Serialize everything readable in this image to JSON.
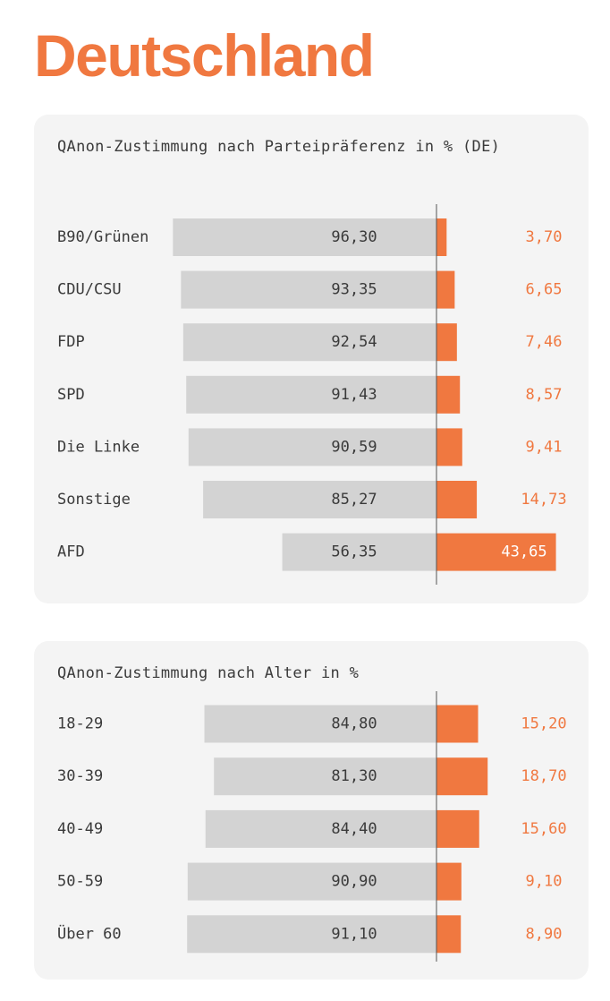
{
  "page": {
    "title": "Deutschland"
  },
  "colors": {
    "accent": "#f07840",
    "neutral_bar": "#d3d3d3",
    "card_bg": "#f4f4f4",
    "text": "#3a3a3a",
    "axis": "#555555"
  },
  "chart_data": [
    {
      "type": "bar",
      "orientation": "horizontal",
      "stacking": "diverging",
      "title": "QAnon-Zustimmung nach Parteipräferenz in % (DE)",
      "categories": [
        "B90/Grünen",
        "CDU/CSU",
        "FDP",
        "SPD",
        "Die Linke",
        "Sonstige",
        "AFD"
      ],
      "series": [
        {
          "values": [
            96.3,
            93.35,
            92.54,
            91.43,
            90.59,
            85.27,
            56.35
          ],
          "labels": [
            "96,30",
            "93,35",
            "92,54",
            "91,43",
            "90,59",
            "85,27",
            "56,35"
          ]
        },
        {
          "values": [
            3.7,
            6.65,
            7.46,
            8.57,
            9.41,
            14.73,
            43.65
          ],
          "labels": [
            "3,70",
            "6,65",
            "7,46",
            "8,57",
            "9,41",
            "14,73",
            "43,65"
          ]
        }
      ]
    },
    {
      "type": "bar",
      "orientation": "horizontal",
      "stacking": "diverging",
      "title": "QAnon-Zustimmung nach Alter in %",
      "categories": [
        "18-29",
        "30-39",
        "40-49",
        "50-59",
        "Über 60"
      ],
      "series": [
        {
          "values": [
            84.8,
            81.3,
            84.4,
            90.9,
            91.1
          ],
          "labels": [
            "84,80",
            "81,30",
            "84,40",
            "90,90",
            "91,10"
          ]
        },
        {
          "values": [
            15.2,
            18.7,
            15.6,
            9.1,
            8.9
          ],
          "labels": [
            "15,20",
            "18,70",
            "15,60",
            "9,10",
            "8,90"
          ]
        }
      ]
    }
  ]
}
